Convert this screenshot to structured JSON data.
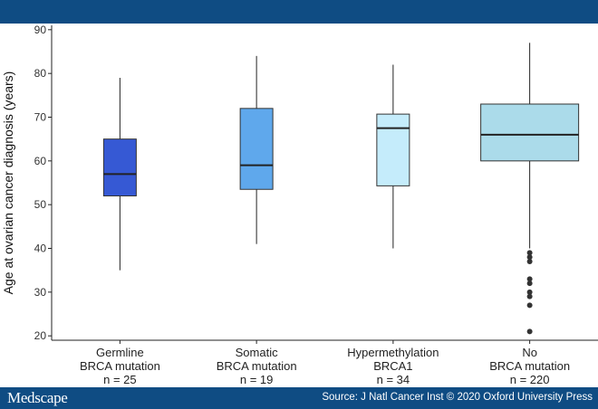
{
  "chart_data": {
    "type": "box",
    "title": "",
    "xlabel": "",
    "ylabel": "Age at ovarian cancer diagnosis (years)",
    "ylim": [
      19,
      91
    ],
    "yticks": [
      20,
      30,
      40,
      50,
      60,
      70,
      80,
      90
    ],
    "grid": false,
    "categories": [
      {
        "lines": [
          "Germline",
          "BRCA mutation",
          "n = 25"
        ],
        "n": 25,
        "min": 35,
        "q1": 52,
        "median": 57,
        "q3": 65,
        "max": 79,
        "outliers": [],
        "color": "#3659d4"
      },
      {
        "lines": [
          "Somatic",
          "BRCA mutation",
          "n = 19"
        ],
        "n": 19,
        "min": 41,
        "q1": 53.5,
        "median": 59,
        "q3": 72,
        "max": 84,
        "outliers": [],
        "color": "#5fa8ec"
      },
      {
        "lines": [
          "Hypermethylation",
          "BRCA1",
          "n = 34"
        ],
        "n": 34,
        "min": 40,
        "q1": 54.3,
        "median": 67.5,
        "q3": 70.7,
        "max": 82,
        "outliers": [],
        "color": "#c5ecfb"
      },
      {
        "lines": [
          "No",
          "BRCA mutation",
          "n = 220"
        ],
        "n": 220,
        "min": 40,
        "q1": 60,
        "median": 66,
        "q3": 73,
        "max": 87,
        "outliers": [
          39,
          38,
          37,
          33,
          32,
          30,
          29,
          27,
          21
        ],
        "color": "#abdbea"
      }
    ]
  },
  "footer": {
    "brand": "Medscape",
    "source": "Source: J Natl Cancer Inst © 2020 Oxford University Press"
  }
}
